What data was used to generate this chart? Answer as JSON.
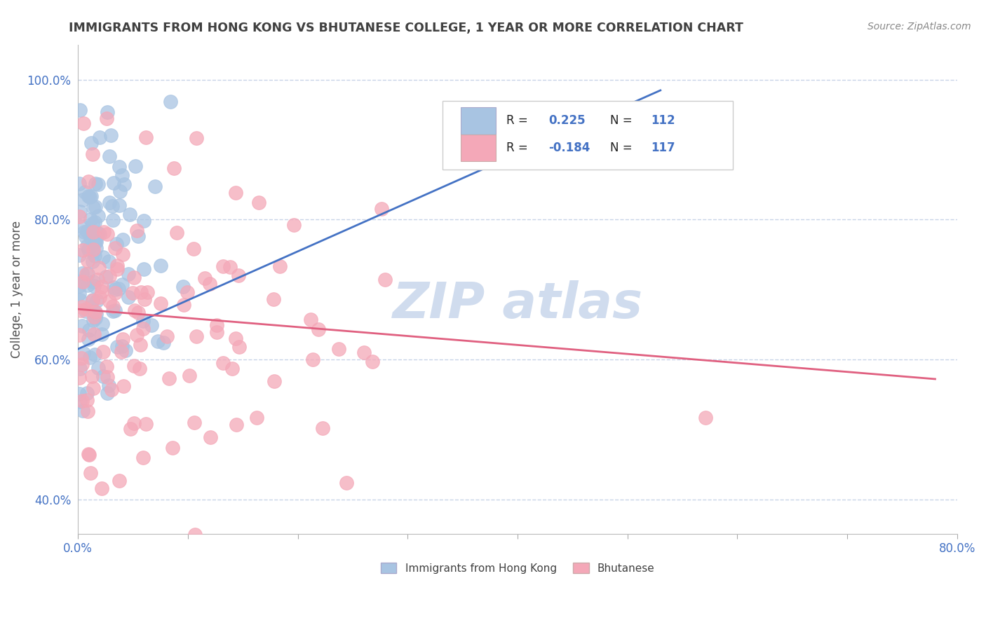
{
  "title": "IMMIGRANTS FROM HONG KONG VS BHUTANESE COLLEGE, 1 YEAR OR MORE CORRELATION CHART",
  "source_text": "Source: ZipAtlas.com",
  "ylabel": "College, 1 year or more",
  "xlim": [
    0.0,
    0.8
  ],
  "ylim": [
    0.35,
    1.05
  ],
  "xticks": [
    0.0,
    0.1,
    0.2,
    0.3,
    0.4,
    0.5,
    0.6,
    0.7,
    0.8
  ],
  "xticklabels": [
    "0.0%",
    "",
    "",
    "",
    "",
    "",
    "",
    "",
    "80.0%"
  ],
  "yticks": [
    0.4,
    0.6,
    0.8,
    1.0
  ],
  "yticklabels": [
    "40.0%",
    "60.0%",
    "80.0%",
    "100.0%"
  ],
  "blue_R": "0.225",
  "blue_N": "112",
  "pink_R": "-0.184",
  "pink_N": "117",
  "blue_color": "#a8c4e2",
  "pink_color": "#f4a8b8",
  "blue_line_color": "#4472c4",
  "pink_line_color": "#e06080",
  "legend_R_color": "#4472c4",
  "title_color": "#404040",
  "source_color": "#888888",
  "background_color": "#ffffff",
  "grid_color": "#c8d4e8",
  "tick_color": "#4472c4",
  "watermark_color": "#d0dcee",
  "blue_line_x": [
    0.0,
    0.53
  ],
  "blue_line_y": [
    0.615,
    0.985
  ],
  "pink_line_x": [
    0.0,
    0.78
  ],
  "pink_line_y": [
    0.672,
    0.572
  ]
}
